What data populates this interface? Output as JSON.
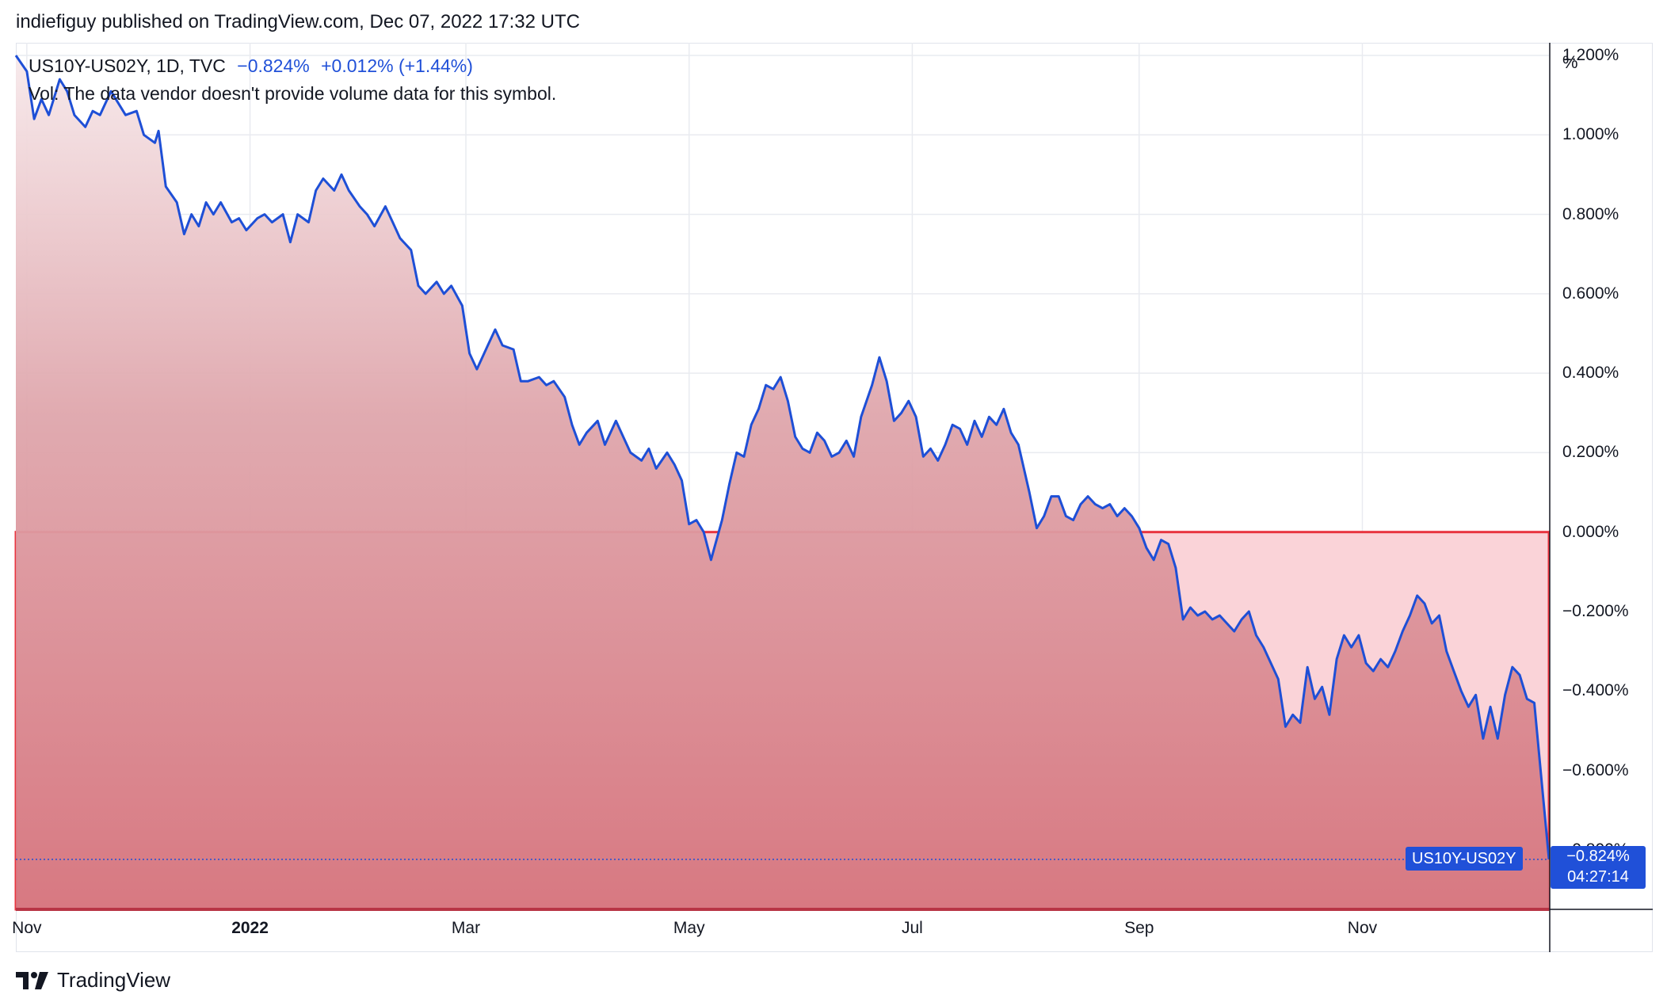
{
  "header": {
    "published_line": "indiefiguy published on TradingView.com, Dec 07, 2022 17:32 UTC"
  },
  "legend": {
    "symbol": "US10Y-US02Y, 1D, TVC",
    "last": "−0.824%",
    "change": "+0.012% (+1.44%)",
    "vol_note": "Vol: The data vendor doesn't provide volume data for this symbol."
  },
  "price_badge": {
    "symbol": "US10Y-US02Y",
    "value": "−0.824%",
    "countdown": "04:27:14"
  },
  "footer": {
    "brand": "TradingView"
  },
  "colors": {
    "line": "#1e4fd6",
    "area_fill": "#d6747d",
    "box_fill": "#fad3d8",
    "box_border": "#e8343f",
    "axis_text": "#131722",
    "grid": "#e9ebf0"
  },
  "chart_data": {
    "type": "area",
    "unit_label": "%",
    "y_range": [
      -0.95,
      1.22
    ],
    "y_ticks": [
      {
        "value": 1.2,
        "label": "1.200%"
      },
      {
        "value": 1.0,
        "label": "1.000%"
      },
      {
        "value": 0.8,
        "label": "0.800%"
      },
      {
        "value": 0.6,
        "label": "0.600%"
      },
      {
        "value": 0.4,
        "label": "0.400%"
      },
      {
        "value": 0.2,
        "label": "0.200%"
      },
      {
        "value": 0.0,
        "label": "0.000%"
      },
      {
        "value": -0.2,
        "label": "−0.200%"
      },
      {
        "value": -0.4,
        "label": "−0.400%"
      },
      {
        "value": -0.6,
        "label": "−0.600%"
      },
      {
        "value": -0.8,
        "label": "−0.800%"
      }
    ],
    "x_range": [
      "2021-10-29",
      "2022-12-22"
    ],
    "x_ticks": [
      {
        "date": "2021-11-01",
        "label": "Nov",
        "bold": false
      },
      {
        "date": "2022-01-01",
        "label": "2022",
        "bold": true
      },
      {
        "date": "2022-03-01",
        "label": "Mar",
        "bold": false
      },
      {
        "date": "2022-05-01",
        "label": "May",
        "bold": false
      },
      {
        "date": "2022-07-01",
        "label": "Jul",
        "bold": false
      },
      {
        "date": "2022-09-01",
        "label": "Sep",
        "bold": false
      },
      {
        "date": "2022-11-01",
        "label": "Nov",
        "bold": false
      }
    ],
    "current_value": -0.824,
    "box": {
      "x_start": "2021-10-29",
      "x_end": "2022-12-22",
      "y_top": 0.0,
      "y_bottom": -0.95
    },
    "series": [
      {
        "points": [
          [
            "2021-10-29",
            1.2
          ],
          [
            "2021-11-01",
            1.16
          ],
          [
            "2021-11-03",
            1.04
          ],
          [
            "2021-11-05",
            1.09
          ],
          [
            "2021-11-07",
            1.05
          ],
          [
            "2021-11-10",
            1.14
          ],
          [
            "2021-11-12",
            1.11
          ],
          [
            "2021-11-14",
            1.05
          ],
          [
            "2021-11-17",
            1.02
          ],
          [
            "2021-11-19",
            1.06
          ],
          [
            "2021-11-21",
            1.05
          ],
          [
            "2021-11-24",
            1.11
          ],
          [
            "2021-11-26",
            1.08
          ],
          [
            "2021-11-28",
            1.05
          ],
          [
            "2021-12-01",
            1.06
          ],
          [
            "2021-12-03",
            1.0
          ],
          [
            "2021-12-06",
            0.98
          ],
          [
            "2021-12-07",
            1.01
          ],
          [
            "2021-12-09",
            0.87
          ],
          [
            "2021-12-12",
            0.83
          ],
          [
            "2021-12-14",
            0.75
          ],
          [
            "2021-12-16",
            0.8
          ],
          [
            "2021-12-18",
            0.77
          ],
          [
            "2021-12-20",
            0.83
          ],
          [
            "2021-12-22",
            0.8
          ],
          [
            "2021-12-24",
            0.83
          ],
          [
            "2021-12-27",
            0.78
          ],
          [
            "2021-12-29",
            0.79
          ],
          [
            "2021-12-31",
            0.76
          ],
          [
            "2022-01-03",
            0.79
          ],
          [
            "2022-01-05",
            0.8
          ],
          [
            "2022-01-07",
            0.78
          ],
          [
            "2022-01-10",
            0.8
          ],
          [
            "2022-01-12",
            0.73
          ],
          [
            "2022-01-14",
            0.8
          ],
          [
            "2022-01-17",
            0.78
          ],
          [
            "2022-01-19",
            0.86
          ],
          [
            "2022-01-21",
            0.89
          ],
          [
            "2022-01-24",
            0.86
          ],
          [
            "2022-01-26",
            0.9
          ],
          [
            "2022-01-28",
            0.86
          ],
          [
            "2022-01-31",
            0.82
          ],
          [
            "2022-02-02",
            0.8
          ],
          [
            "2022-02-04",
            0.77
          ],
          [
            "2022-02-07",
            0.82
          ],
          [
            "2022-02-09",
            0.78
          ],
          [
            "2022-02-11",
            0.74
          ],
          [
            "2022-02-14",
            0.71
          ],
          [
            "2022-02-16",
            0.62
          ],
          [
            "2022-02-18",
            0.6
          ],
          [
            "2022-02-21",
            0.63
          ],
          [
            "2022-02-23",
            0.6
          ],
          [
            "2022-02-25",
            0.62
          ],
          [
            "2022-02-28",
            0.57
          ],
          [
            "2022-03-02",
            0.45
          ],
          [
            "2022-03-04",
            0.41
          ],
          [
            "2022-03-07",
            0.47
          ],
          [
            "2022-03-09",
            0.51
          ],
          [
            "2022-03-11",
            0.47
          ],
          [
            "2022-03-14",
            0.46
          ],
          [
            "2022-03-16",
            0.38
          ],
          [
            "2022-03-18",
            0.38
          ],
          [
            "2022-03-21",
            0.39
          ],
          [
            "2022-03-23",
            0.37
          ],
          [
            "2022-03-25",
            0.38
          ],
          [
            "2022-03-28",
            0.34
          ],
          [
            "2022-03-30",
            0.27
          ],
          [
            "2022-04-01",
            0.22
          ],
          [
            "2022-04-03",
            0.25
          ],
          [
            "2022-04-06",
            0.28
          ],
          [
            "2022-04-08",
            0.22
          ],
          [
            "2022-04-11",
            0.28
          ],
          [
            "2022-04-13",
            0.24
          ],
          [
            "2022-04-15",
            0.2
          ],
          [
            "2022-04-18",
            0.18
          ],
          [
            "2022-04-20",
            0.21
          ],
          [
            "2022-04-22",
            0.16
          ],
          [
            "2022-04-25",
            0.2
          ],
          [
            "2022-04-27",
            0.17
          ],
          [
            "2022-04-29",
            0.13
          ],
          [
            "2022-05-01",
            0.02
          ],
          [
            "2022-05-03",
            0.03
          ],
          [
            "2022-05-05",
            0.0
          ],
          [
            "2022-05-07",
            -0.07
          ],
          [
            "2022-05-10",
            0.03
          ],
          [
            "2022-05-12",
            0.12
          ],
          [
            "2022-05-14",
            0.2
          ],
          [
            "2022-05-16",
            0.19
          ],
          [
            "2022-05-18",
            0.27
          ],
          [
            "2022-05-20",
            0.31
          ],
          [
            "2022-05-22",
            0.37
          ],
          [
            "2022-05-24",
            0.36
          ],
          [
            "2022-05-26",
            0.39
          ],
          [
            "2022-05-28",
            0.33
          ],
          [
            "2022-05-30",
            0.24
          ],
          [
            "2022-06-01",
            0.21
          ],
          [
            "2022-06-03",
            0.2
          ],
          [
            "2022-06-05",
            0.25
          ],
          [
            "2022-06-07",
            0.23
          ],
          [
            "2022-06-09",
            0.19
          ],
          [
            "2022-06-11",
            0.2
          ],
          [
            "2022-06-13",
            0.23
          ],
          [
            "2022-06-15",
            0.19
          ],
          [
            "2022-06-17",
            0.29
          ],
          [
            "2022-06-20",
            0.37
          ],
          [
            "2022-06-22",
            0.44
          ],
          [
            "2022-06-24",
            0.38
          ],
          [
            "2022-06-26",
            0.28
          ],
          [
            "2022-06-28",
            0.3
          ],
          [
            "2022-06-30",
            0.33
          ],
          [
            "2022-07-02",
            0.29
          ],
          [
            "2022-07-04",
            0.19
          ],
          [
            "2022-07-06",
            0.21
          ],
          [
            "2022-07-08",
            0.18
          ],
          [
            "2022-07-10",
            0.22
          ],
          [
            "2022-07-12",
            0.27
          ],
          [
            "2022-07-14",
            0.26
          ],
          [
            "2022-07-16",
            0.22
          ],
          [
            "2022-07-18",
            0.28
          ],
          [
            "2022-07-20",
            0.24
          ],
          [
            "2022-07-22",
            0.29
          ],
          [
            "2022-07-24",
            0.27
          ],
          [
            "2022-07-26",
            0.31
          ],
          [
            "2022-07-28",
            0.25
          ],
          [
            "2022-07-30",
            0.22
          ],
          [
            "2022-08-02",
            0.1
          ],
          [
            "2022-08-04",
            0.01
          ],
          [
            "2022-08-06",
            0.04
          ],
          [
            "2022-08-08",
            0.09
          ],
          [
            "2022-08-10",
            0.09
          ],
          [
            "2022-08-12",
            0.04
          ],
          [
            "2022-08-14",
            0.03
          ],
          [
            "2022-08-16",
            0.07
          ],
          [
            "2022-08-18",
            0.09
          ],
          [
            "2022-08-20",
            0.07
          ],
          [
            "2022-08-22",
            0.06
          ],
          [
            "2022-08-24",
            0.07
          ],
          [
            "2022-08-26",
            0.04
          ],
          [
            "2022-08-28",
            0.06
          ],
          [
            "2022-08-30",
            0.04
          ],
          [
            "2022-09-01",
            0.01
          ],
          [
            "2022-09-03",
            -0.04
          ],
          [
            "2022-09-05",
            -0.07
          ],
          [
            "2022-09-07",
            -0.02
          ],
          [
            "2022-09-09",
            -0.03
          ],
          [
            "2022-09-11",
            -0.09
          ],
          [
            "2022-09-13",
            -0.22
          ],
          [
            "2022-09-15",
            -0.19
          ],
          [
            "2022-09-17",
            -0.21
          ],
          [
            "2022-09-19",
            -0.2
          ],
          [
            "2022-09-21",
            -0.22
          ],
          [
            "2022-09-23",
            -0.21
          ],
          [
            "2022-09-25",
            -0.23
          ],
          [
            "2022-09-27",
            -0.25
          ],
          [
            "2022-09-29",
            -0.22
          ],
          [
            "2022-10-01",
            -0.2
          ],
          [
            "2022-10-03",
            -0.26
          ],
          [
            "2022-10-05",
            -0.29
          ],
          [
            "2022-10-07",
            -0.33
          ],
          [
            "2022-10-09",
            -0.37
          ],
          [
            "2022-10-11",
            -0.49
          ],
          [
            "2022-10-13",
            -0.46
          ],
          [
            "2022-10-15",
            -0.48
          ],
          [
            "2022-10-17",
            -0.34
          ],
          [
            "2022-10-19",
            -0.42
          ],
          [
            "2022-10-21",
            -0.39
          ],
          [
            "2022-10-23",
            -0.46
          ],
          [
            "2022-10-25",
            -0.32
          ],
          [
            "2022-10-27",
            -0.26
          ],
          [
            "2022-10-29",
            -0.29
          ],
          [
            "2022-10-31",
            -0.26
          ],
          [
            "2022-11-02",
            -0.33
          ],
          [
            "2022-11-04",
            -0.35
          ],
          [
            "2022-11-06",
            -0.32
          ],
          [
            "2022-11-08",
            -0.34
          ],
          [
            "2022-11-10",
            -0.3
          ],
          [
            "2022-11-12",
            -0.25
          ],
          [
            "2022-11-14",
            -0.21
          ],
          [
            "2022-11-16",
            -0.16
          ],
          [
            "2022-11-18",
            -0.18
          ],
          [
            "2022-11-20",
            -0.23
          ],
          [
            "2022-11-22",
            -0.21
          ],
          [
            "2022-11-24",
            -0.3
          ],
          [
            "2022-11-26",
            -0.35
          ],
          [
            "2022-11-28",
            -0.4
          ],
          [
            "2022-11-30",
            -0.44
          ],
          [
            "2022-12-02",
            -0.41
          ],
          [
            "2022-12-04",
            -0.52
          ],
          [
            "2022-12-06",
            -0.44
          ],
          [
            "2022-12-08",
            -0.52
          ],
          [
            "2022-12-10",
            -0.41
          ],
          [
            "2022-12-12",
            -0.34
          ],
          [
            "2022-12-14",
            -0.36
          ],
          [
            "2022-12-16",
            -0.42
          ],
          [
            "2022-12-18",
            -0.43
          ],
          [
            "2022-12-22",
            -0.824
          ]
        ]
      }
    ]
  }
}
